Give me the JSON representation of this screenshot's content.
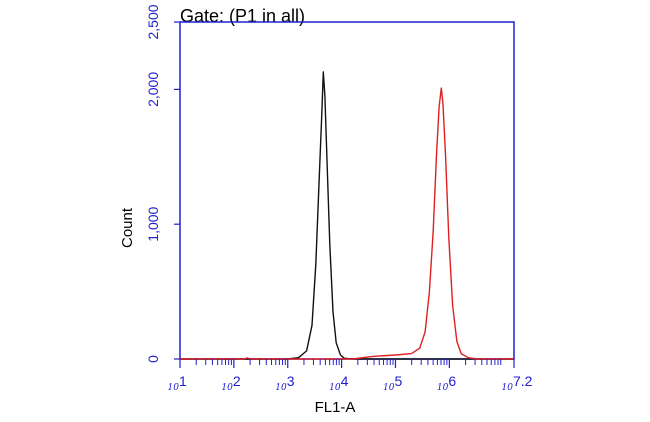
{
  "colors": {
    "axis": "#2020d0",
    "tick_label": "#2020d0",
    "text": "#000000",
    "series_black": "#111111",
    "series_red": "#e02020"
  },
  "chart_data": {
    "type": "line",
    "title": "Gate: (P1 in all)",
    "xlabel": "FL1-A",
    "ylabel": "Count",
    "x_scale": "log",
    "xlim": [
      1,
      7.2
    ],
    "ylim": [
      0,
      2500
    ],
    "yticks": [
      {
        "value": 0,
        "label": "0"
      },
      {
        "value": 1000,
        "label": "1,000"
      },
      {
        "value": 2000,
        "label": "2,000"
      },
      {
        "value": 2500,
        "label": "2,500"
      }
    ],
    "xticks": [
      {
        "value": 1,
        "base": "10",
        "exp": "1"
      },
      {
        "value": 2,
        "base": "10",
        "exp": "2"
      },
      {
        "value": 3,
        "base": "10",
        "exp": "3"
      },
      {
        "value": 4,
        "base": "10",
        "exp": "4"
      },
      {
        "value": 5,
        "base": "10",
        "exp": "5"
      },
      {
        "value": 6,
        "base": "10",
        "exp": "6"
      },
      {
        "value": 7.2,
        "base": "10",
        "exp": "7.2"
      }
    ],
    "grid": false,
    "series": [
      {
        "color": "#111111",
        "points": [
          [
            1.0,
            0
          ],
          [
            2.0,
            0
          ],
          [
            3.0,
            0
          ],
          [
            3.2,
            10
          ],
          [
            3.35,
            60
          ],
          [
            3.45,
            250
          ],
          [
            3.52,
            700
          ],
          [
            3.58,
            1300
          ],
          [
            3.63,
            1800
          ],
          [
            3.66,
            2130
          ],
          [
            3.69,
            1950
          ],
          [
            3.73,
            1450
          ],
          [
            3.78,
            850
          ],
          [
            3.84,
            350
          ],
          [
            3.9,
            120
          ],
          [
            3.98,
            30
          ],
          [
            4.05,
            5
          ],
          [
            4.2,
            0
          ],
          [
            5.0,
            0
          ],
          [
            7.2,
            0
          ]
        ]
      },
      {
        "color": "#e02020",
        "points": [
          [
            1.0,
            0
          ],
          [
            2.2,
            0
          ],
          [
            2.25,
            8
          ],
          [
            2.3,
            0
          ],
          [
            4.2,
            0
          ],
          [
            4.6,
            20
          ],
          [
            5.0,
            30
          ],
          [
            5.3,
            40
          ],
          [
            5.45,
            80
          ],
          [
            5.55,
            200
          ],
          [
            5.63,
            500
          ],
          [
            5.7,
            950
          ],
          [
            5.76,
            1500
          ],
          [
            5.81,
            1870
          ],
          [
            5.85,
            2010
          ],
          [
            5.88,
            1900
          ],
          [
            5.93,
            1500
          ],
          [
            5.99,
            900
          ],
          [
            6.06,
            400
          ],
          [
            6.14,
            130
          ],
          [
            6.22,
            40
          ],
          [
            6.35,
            10
          ],
          [
            6.5,
            0
          ],
          [
            7.2,
            0
          ]
        ]
      }
    ]
  }
}
